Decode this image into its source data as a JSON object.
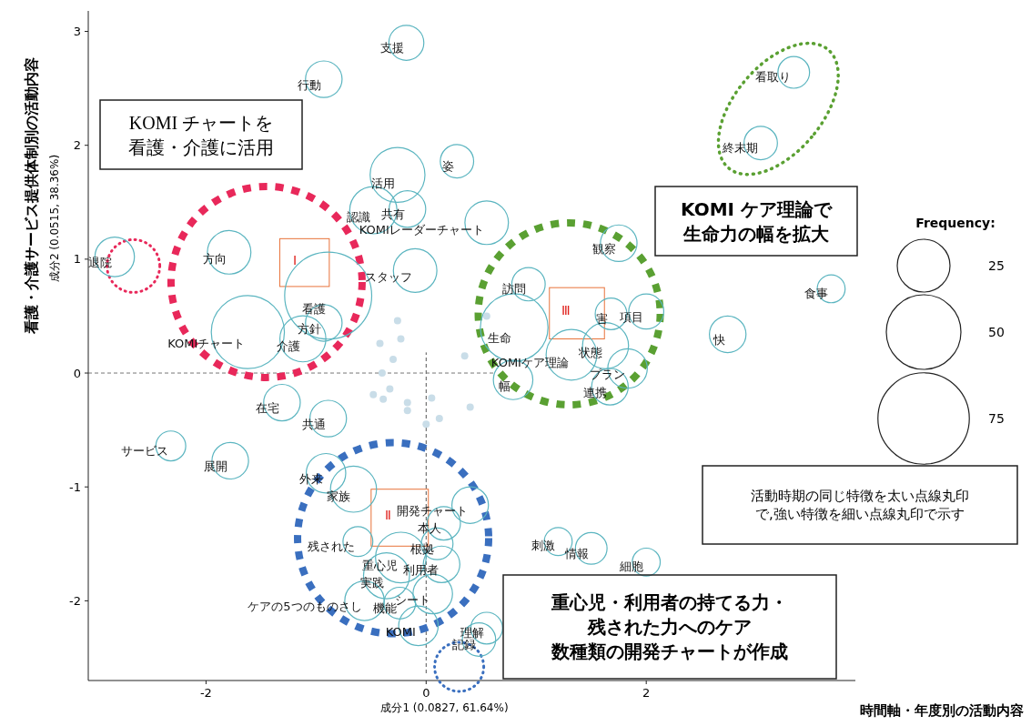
{
  "chart_data": {
    "type": "bubble",
    "xlabel": "成分1 (0.0827, 61.64%)",
    "ylabel": "成分2 (0.0515, 38.36%)",
    "legend_title": "Frequency:",
    "size_legend": [
      25,
      50,
      75
    ],
    "xlim": [
      -3.07,
      3.9
    ],
    "ylim": [
      -2.7,
      3.18
    ],
    "xticks": [
      -2,
      0,
      2
    ],
    "yticks": [
      -2,
      -1,
      0,
      1,
      2,
      3
    ],
    "ref_lines": [
      {
        "axis": "x",
        "value": 0,
        "line_style": "dashed",
        "color": "#555555"
      },
      {
        "axis": "y",
        "value": 0,
        "line_style": "dashed",
        "color": "#777777"
      }
    ],
    "series": [
      {
        "type": "bubble",
        "color": "#5bb5c0",
        "marker": "circle",
        "x": [
          -2.83,
          -1.79,
          -0.89,
          -1.62,
          -0.93,
          -1.12,
          -1.31,
          -0.89,
          -2.32,
          -1.78,
          -0.93,
          -0.18,
          -0.26,
          -0.48,
          -0.17,
          0.28,
          0.55,
          -0.1,
          3.34,
          3.04,
          1.75,
          0.93,
          0.8,
          1.68,
          2.0,
          1.32,
          1.63,
          1.83,
          1.67,
          0.79,
          2.74,
          3.68,
          -0.91,
          -0.66,
          -0.62,
          0.4,
          0.16,
          -0.23,
          0.1,
          -0.36,
          0.14,
          -0.56,
          -0.24,
          0.06,
          -0.07,
          0.55,
          0.48,
          1.2,
          1.5,
          2.0
        ],
        "values": [
          1.02,
          1.06,
          0.68,
          0.36,
          0.44,
          0.3,
          -0.26,
          -0.4,
          -0.64,
          -0.77,
          2.58,
          2.9,
          1.74,
          1.43,
          1.44,
          1.86,
          1.32,
          0.9,
          2.64,
          2.02,
          1.14,
          0.78,
          0.4,
          0.52,
          0.54,
          0.16,
          0.24,
          0.04,
          -0.12,
          -0.06,
          0.34,
          0.74,
          -0.88,
          -1.02,
          -1.48,
          -1.16,
          -1.32,
          -1.62,
          -1.5,
          -1.78,
          -1.68,
          -2.0,
          -2.02,
          -1.94,
          -2.22,
          -2.24,
          -2.34,
          -1.48,
          -1.54,
          -1.66
        ],
        "sizes": [
          14,
          17,
          68,
          48,
          12,
          19,
          12,
          12,
          8,
          12,
          12,
          11,
          27,
          20,
          12,
          10,
          17,
          17,
          9,
          10,
          12,
          10,
          41,
          9,
          11,
          23,
          19,
          14,
          12,
          14,
          12,
          7,
          14,
          19,
          8,
          12,
          10,
          23,
          9,
          19,
          12,
          14,
          9,
          14,
          14,
          9,
          10,
          7,
          9,
          7
        ],
        "value_labels": [
          "退院",
          "方向",
          "看護",
          "KOMIチャート",
          "方針",
          "介護",
          "在宅",
          "共通",
          "サービス",
          "展開",
          "行動",
          "支援",
          "活用",
          "認識",
          "共有",
          "姿",
          "KOMIレーダーチャート",
          "スタッフ",
          "看取り",
          "終末期",
          "観察",
          "訪問",
          "生命",
          "害",
          "項目",
          "KOMIケア理論",
          "状態",
          "プラン",
          "連携",
          "幅",
          "快",
          "食事",
          "外来",
          "家族",
          "残された",
          "開発チャート",
          "本人",
          "重心児",
          "根拠",
          "実践",
          "利用者",
          "ケアの5つのものさし",
          "機能",
          "シート",
          "KOMI",
          "理解",
          "記録",
          "刺激",
          "情報",
          "細胞"
        ]
      },
      {
        "type": "scatter",
        "color": "#c9dde8",
        "marker": "circle",
        "x": [
          -0.26,
          -0.42,
          -0.23,
          -0.3,
          -0.4,
          -0.33,
          -0.48,
          -0.39,
          -0.17,
          -0.17,
          0.0,
          0.12,
          0.35,
          0.4,
          0.05,
          0.55
        ],
        "values": [
          0.46,
          0.26,
          0.3,
          0.12,
          0.0,
          -0.14,
          -0.19,
          -0.23,
          -0.26,
          -0.33,
          -0.45,
          -0.4,
          0.15,
          -0.3,
          -0.22,
          0.5
        ]
      }
    ],
    "annotations": [
      "KOMI チャートを",
      "看護・介護に活用",
      "KOMI ケア理論で",
      "生命力の幅を拡大",
      "活動時期の同じ特徴を太い点線丸印",
      "で,強い特徴を細い点線丸印で示す",
      "重心児・利用者の持てる力・",
      "残された力へのケア",
      "数種類の開発チャートが作成",
      "Ⅰ",
      "Ⅱ",
      "Ⅲ",
      "看護・介護サービス提供体制別の活動内容",
      "時間軸・年度別の活動内容"
    ]
  }
}
